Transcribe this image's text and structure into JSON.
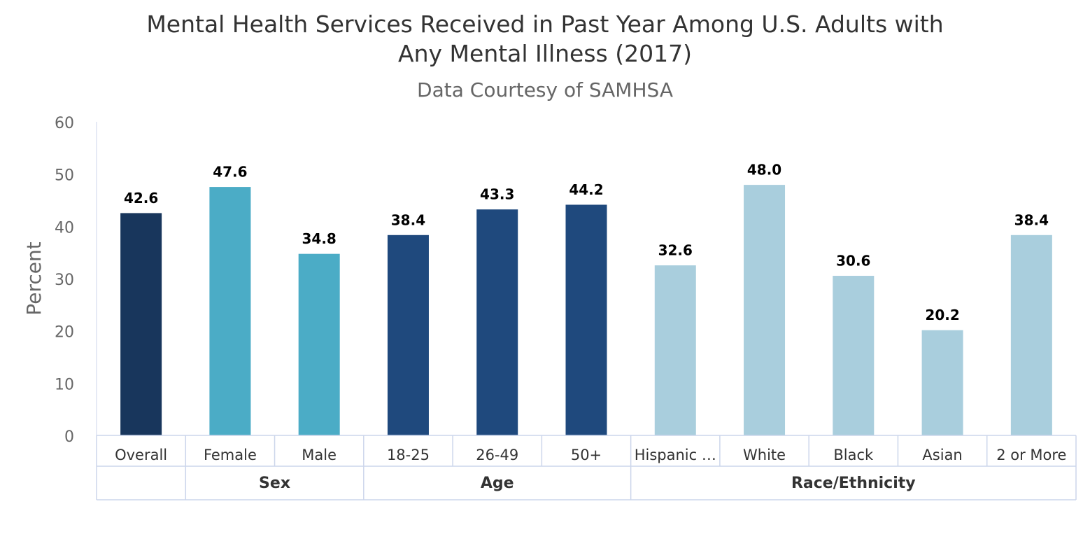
{
  "title_line1": "Mental Health Services Received in Past Year Among U.S. Adults with",
  "title_line2": "Any Mental Illness (2017)",
  "subtitle": "Data Courtesy of SAMHSA",
  "chart_data": {
    "type": "bar",
    "title": "Mental Health Services Received in Past Year Among U.S. Adults with Any Mental Illness (2017)",
    "subtitle": "Data Courtesy of SAMHSA",
    "ylabel": "Percent",
    "ylim": [
      0,
      60
    ],
    "yticks": [
      0,
      10,
      20,
      30,
      40,
      50,
      60
    ],
    "grid": false,
    "categories": [
      "Overall",
      "Female",
      "Male",
      "18-25",
      "26-49",
      "50+",
      "Hispanic …",
      "White",
      "Black",
      "Asian",
      "2 or More"
    ],
    "values": [
      42.6,
      47.6,
      34.8,
      38.4,
      43.3,
      44.2,
      32.6,
      48.0,
      30.6,
      20.2,
      38.4
    ],
    "data_labels": [
      "42.6",
      "47.6",
      "34.8",
      "38.4",
      "43.3",
      "44.2",
      "32.6",
      "48.0",
      "30.6",
      "20.2",
      "38.4"
    ],
    "bar_colors": [
      "#18365c",
      "#4bacc6",
      "#4bacc6",
      "#1f497d",
      "#1f497d",
      "#1f497d",
      "#a9cedd",
      "#a9cedd",
      "#a9cedd",
      "#a9cedd",
      "#a9cedd"
    ],
    "groups": [
      {
        "label": "",
        "start": 0,
        "count": 1
      },
      {
        "label": "Sex",
        "start": 1,
        "count": 2
      },
      {
        "label": "Age",
        "start": 3,
        "count": 3
      },
      {
        "label": "Race/Ethnicity",
        "start": 6,
        "count": 5
      }
    ],
    "colors": {
      "axis": "#ccd6eb",
      "tick_text": "#666666",
      "label_text": "#000000",
      "category_text": "#333333"
    }
  }
}
